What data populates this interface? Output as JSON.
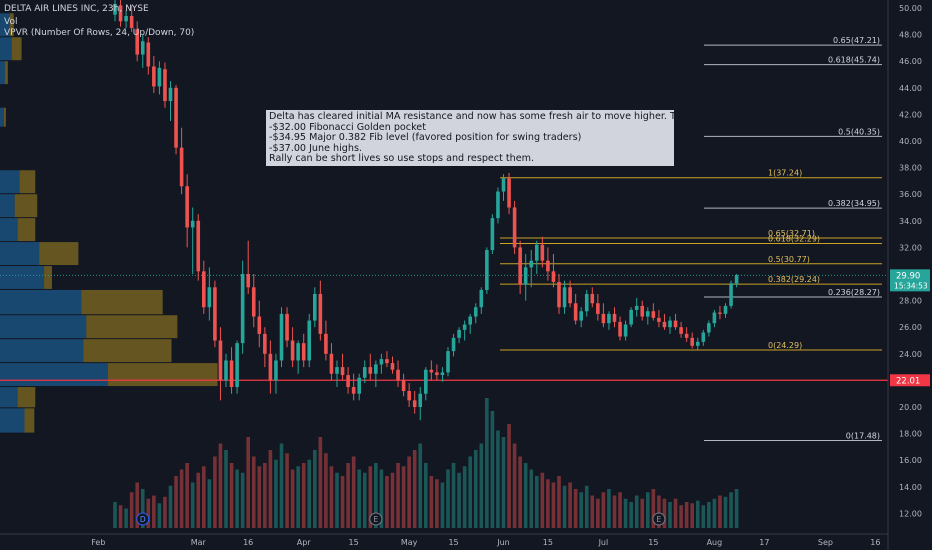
{
  "header": {
    "title": "DELTA AIR LINES INC, 23h, NYSE",
    "vol_label": "Vol",
    "vpvr_label": "VPVR (Number Of Rows, 24, Up/Down, 70)"
  },
  "note": {
    "lines": [
      "Delta has cleared initial MA resistance and now has some fresh air to move higher. Targets",
      "-$32.00 Fibonacci Golden pocket",
      "-$34.95 Major 0.382 Fib level (favored position for swing traders)",
      "-$37.00  June highs.",
      "Rally can be short lives so use stops and respect them."
    ]
  },
  "colors": {
    "background": "#131722",
    "up": "#26a69a",
    "down": "#ef5350",
    "fib": "#c9a227",
    "fib_upper": "#b2b5be",
    "support": "#f23645",
    "vpvr_up": "#1e6fb0",
    "vpvr_down": "#b8951f",
    "last_price": "#26a69a"
  },
  "chart_data": {
    "type": "candlestick",
    "symbol": "DELTA AIR LINES INC",
    "interval": "23h",
    "exchange": "NYSE",
    "y_axis": {
      "ylim": [
        10.5,
        51.0
      ],
      "ticks": [
        "12.00",
        "14.00",
        "16.00",
        "18.00",
        "20.00",
        "22.00",
        "24.00",
        "26.00",
        "28.00",
        "30.00",
        "32.00",
        "34.00",
        "36.00",
        "38.00",
        "40.00",
        "42.00",
        "44.00",
        "46.00",
        "48.00",
        "50.00"
      ]
    },
    "x_axis": {
      "labels": [
        {
          "label": "Feb",
          "i": -3
        },
        {
          "label": "Mar",
          "i": 15
        },
        {
          "label": "16",
          "i": 24
        },
        {
          "label": "Apr",
          "i": 34
        },
        {
          "label": "15",
          "i": 43
        },
        {
          "label": "May",
          "i": 53
        },
        {
          "label": "15",
          "i": 61
        },
        {
          "label": "Jun",
          "i": 70
        },
        {
          "label": "15",
          "i": 78
        },
        {
          "label": "Jul",
          "i": 88
        },
        {
          "label": "15",
          "i": 97
        },
        {
          "label": "Aug",
          "i": 108
        },
        {
          "label": "17",
          "i": 117
        },
        {
          "label": "Sep",
          "i": 128
        },
        {
          "label": "16",
          "i": 137
        }
      ]
    },
    "ohlc": [
      [
        49.5,
        50.8,
        49.0,
        50.3
      ],
      [
        50.2,
        50.6,
        48.6,
        49.0
      ],
      [
        49.0,
        49.8,
        48.5,
        49.4
      ],
      [
        49.4,
        50.2,
        48.2,
        48.5
      ],
      [
        48.4,
        49.0,
        46.0,
        46.5
      ],
      [
        46.5,
        48.0,
        45.5,
        47.5
      ],
      [
        47.4,
        47.8,
        45.0,
        45.6
      ],
      [
        45.6,
        46.4,
        43.6,
        44.1
      ],
      [
        44.1,
        46.0,
        43.5,
        45.5
      ],
      [
        45.4,
        45.9,
        42.5,
        43.0
      ],
      [
        43.0,
        44.5,
        41.5,
        44.0
      ],
      [
        44.0,
        44.2,
        39.0,
        39.5
      ],
      [
        39.5,
        41.0,
        36.0,
        36.6
      ],
      [
        36.6,
        37.5,
        32.0,
        33.5
      ],
      [
        33.5,
        35.0,
        30.0,
        34.0
      ],
      [
        34.0,
        34.5,
        29.5,
        30.2
      ],
      [
        30.2,
        31.0,
        27.0,
        27.5
      ],
      [
        27.5,
        30.5,
        26.5,
        29.0
      ],
      [
        29.0,
        29.5,
        24.5,
        25.0
      ],
      [
        25.0,
        26.0,
        20.5,
        22.0
      ],
      [
        22.0,
        24.0,
        21.5,
        23.5
      ],
      [
        23.5,
        24.5,
        21.0,
        21.5
      ],
      [
        21.5,
        25.0,
        21.0,
        24.8
      ],
      [
        24.8,
        31.0,
        24.0,
        30.0
      ],
      [
        30.0,
        32.5,
        28.5,
        29.0
      ],
      [
        29.0,
        30.0,
        26.0,
        26.8
      ],
      [
        26.8,
        28.0,
        24.5,
        25.5
      ],
      [
        25.5,
        26.0,
        23.0,
        24.0
      ],
      [
        24.0,
        25.0,
        21.0,
        22.0
      ],
      [
        22.0,
        24.0,
        21.0,
        23.5
      ],
      [
        23.5,
        27.5,
        23.0,
        27.0
      ],
      [
        27.0,
        27.5,
        24.5,
        25.0
      ],
      [
        25.0,
        26.0,
        23.0,
        23.5
      ],
      [
        23.5,
        25.0,
        22.5,
        24.8
      ],
      [
        24.8,
        25.5,
        23.0,
        23.5
      ],
      [
        23.5,
        27.0,
        23.0,
        26.5
      ],
      [
        26.5,
        29.0,
        26.0,
        28.5
      ],
      [
        28.5,
        29.5,
        25.0,
        25.5
      ],
      [
        25.5,
        26.5,
        23.5,
        24.0
      ],
      [
        24.0,
        24.8,
        22.0,
        22.5
      ],
      [
        22.5,
        23.5,
        21.5,
        23.0
      ],
      [
        23.0,
        24.0,
        22.0,
        22.4
      ],
      [
        22.4,
        23.0,
        21.0,
        21.5
      ],
      [
        21.5,
        22.5,
        20.5,
        21.0
      ],
      [
        21.0,
        22.5,
        20.5,
        22.2
      ],
      [
        22.2,
        23.5,
        21.8,
        23.0
      ],
      [
        23.0,
        24.0,
        22.0,
        22.5
      ],
      [
        22.5,
        23.5,
        21.5,
        23.2
      ],
      [
        23.2,
        24.0,
        22.5,
        23.6
      ],
      [
        23.6,
        24.2,
        23.0,
        23.3
      ],
      [
        23.3,
        23.8,
        22.5,
        22.8
      ],
      [
        22.8,
        23.5,
        21.5,
        22.0
      ],
      [
        22.0,
        22.5,
        20.8,
        21.2
      ],
      [
        21.2,
        21.8,
        20.0,
        20.5
      ],
      [
        20.5,
        21.2,
        19.5,
        20.0
      ],
      [
        20.0,
        21.5,
        19.0,
        21.0
      ],
      [
        21.0,
        23.0,
        20.5,
        22.8
      ],
      [
        22.8,
        23.5,
        22.0,
        22.6
      ],
      [
        22.6,
        23.2,
        22.0,
        22.4
      ],
      [
        22.4,
        23.0,
        21.9,
        22.6
      ],
      [
        22.6,
        24.5,
        22.3,
        24.2
      ],
      [
        24.2,
        25.5,
        23.8,
        25.2
      ],
      [
        25.2,
        26.0,
        24.8,
        25.8
      ],
      [
        25.8,
        26.5,
        25.0,
        26.2
      ],
      [
        26.2,
        27.0,
        25.5,
        26.8
      ],
      [
        26.8,
        27.8,
        26.3,
        27.5
      ],
      [
        27.5,
        29.0,
        27.0,
        28.8
      ],
      [
        28.8,
        32.0,
        28.5,
        31.8
      ],
      [
        31.8,
        34.5,
        31.5,
        34.2
      ],
      [
        34.2,
        36.5,
        33.8,
        36.2
      ],
      [
        36.2,
        37.5,
        35.5,
        37.2
      ],
      [
        37.2,
        37.6,
        34.5,
        35.0
      ],
      [
        35.0,
        35.5,
        31.5,
        32.0
      ],
      [
        32.0,
        32.5,
        28.5,
        29.2
      ],
      [
        29.2,
        31.5,
        28.0,
        30.5
      ],
      [
        30.5,
        31.8,
        29.0,
        31.0
      ],
      [
        31.0,
        32.5,
        30.0,
        32.2
      ],
      [
        32.2,
        32.8,
        30.5,
        31.0
      ],
      [
        31.0,
        32.0,
        29.5,
        30.2
      ],
      [
        30.2,
        31.5,
        29.0,
        29.4
      ],
      [
        29.4,
        30.0,
        27.0,
        27.5
      ],
      [
        27.5,
        29.5,
        27.0,
        29.0
      ],
      [
        29.0,
        29.5,
        27.5,
        27.8
      ],
      [
        27.8,
        28.5,
        26.2,
        26.5
      ],
      [
        26.5,
        27.5,
        26.0,
        27.2
      ],
      [
        27.2,
        28.8,
        26.8,
        28.5
      ],
      [
        28.5,
        29.0,
        27.5,
        27.8
      ],
      [
        27.8,
        28.5,
        26.5,
        27.0
      ],
      [
        27.0,
        27.8,
        26.0,
        26.3
      ],
      [
        26.3,
        27.2,
        25.8,
        27.0
      ],
      [
        27.0,
        27.5,
        26.0,
        26.4
      ],
      [
        26.4,
        26.8,
        25.0,
        25.3
      ],
      [
        25.3,
        26.5,
        25.0,
        26.2
      ],
      [
        26.2,
        27.5,
        26.0,
        27.3
      ],
      [
        27.3,
        28.2,
        26.8,
        27.6
      ],
      [
        27.6,
        28.0,
        26.5,
        26.8
      ],
      [
        26.8,
        27.5,
        26.2,
        27.2
      ],
      [
        27.2,
        27.8,
        26.5,
        26.7
      ],
      [
        26.7,
        27.3,
        26.0,
        26.4
      ],
      [
        26.4,
        27.0,
        25.8,
        26.0
      ],
      [
        26.0,
        26.8,
        25.5,
        26.5
      ],
      [
        26.5,
        27.0,
        25.8,
        26.0
      ],
      [
        26.0,
        26.4,
        25.2,
        25.5
      ],
      [
        25.5,
        26.0,
        24.9,
        25.2
      ],
      [
        25.2,
        25.6,
        24.4,
        24.6
      ],
      [
        24.6,
        25.2,
        24.3,
        24.9
      ],
      [
        24.9,
        25.8,
        24.6,
        25.6
      ],
      [
        25.6,
        26.5,
        25.3,
        26.3
      ],
      [
        26.3,
        27.3,
        26.0,
        27.1
      ],
      [
        27.1,
        27.6,
        26.6,
        27.0
      ],
      [
        27.0,
        27.8,
        26.7,
        27.6
      ],
      [
        27.6,
        29.5,
        27.4,
        29.3
      ],
      [
        29.3,
        30.0,
        29.0,
        29.9
      ]
    ],
    "volume": [
      40,
      35,
      30,
      55,
      70,
      60,
      45,
      50,
      38,
      48,
      65,
      80,
      90,
      100,
      70,
      85,
      95,
      75,
      110,
      130,
      120,
      100,
      90,
      85,
      140,
      110,
      95,
      100,
      120,
      105,
      130,
      115,
      90,
      95,
      100,
      105,
      120,
      140,
      115,
      95,
      85,
      80,
      100,
      110,
      90,
      85,
      95,
      100,
      90,
      80,
      85,
      100,
      95,
      110,
      120,
      130,
      100,
      80,
      75,
      70,
      90,
      100,
      85,
      95,
      110,
      120,
      130,
      200,
      180,
      150,
      140,
      160,
      130,
      110,
      100,
      90,
      80,
      85,
      75,
      70,
      80,
      65,
      70,
      60,
      55,
      65,
      50,
      45,
      55,
      60,
      50,
      55,
      45,
      40,
      50,
      45,
      55,
      60,
      50,
      45,
      40,
      45,
      35,
      40,
      38,
      42,
      35,
      40,
      45,
      50,
      48,
      55,
      60
    ],
    "vol_max": 200,
    "vpvr": {
      "rows": [
        {
          "low": 18.0,
          "high": 19.9,
          "up": 25,
          "down": 10
        },
        {
          "low": 19.9,
          "high": 21.5,
          "up": 18,
          "down": 18
        },
        {
          "low": 21.5,
          "high": 23.3,
          "up": 110,
          "down": 112
        },
        {
          "low": 23.3,
          "high": 25.1,
          "up": 85,
          "down": 90
        },
        {
          "low": 25.1,
          "high": 26.9,
          "up": 88,
          "down": 93
        },
        {
          "low": 26.9,
          "high": 28.8,
          "up": 83,
          "down": 83
        },
        {
          "low": 28.8,
          "high": 30.6,
          "up": 45,
          "down": 8
        },
        {
          "low": 30.6,
          "high": 32.4,
          "up": 40,
          "down": 40
        },
        {
          "low": 32.4,
          "high": 34.2,
          "up": 18,
          "down": 18
        },
        {
          "low": 34.2,
          "high": 36.0,
          "up": 15,
          "down": 23
        },
        {
          "low": 36.0,
          "high": 37.8,
          "up": 20,
          "down": 16
        },
        {
          "low": 41.0,
          "high": 42.5,
          "up": 4,
          "down": 2
        },
        {
          "low": 44.2,
          "high": 46.0,
          "up": 5,
          "down": 3
        },
        {
          "low": 46.0,
          "high": 47.8,
          "up": 12,
          "down": 10
        },
        {
          "low": 47.8,
          "high": 49.6,
          "up": 10,
          "down": 4
        }
      ]
    },
    "fib_levels": [
      {
        "label": "0.65(47.21)",
        "price": 47.21,
        "group": "upper"
      },
      {
        "label": "0.618(45.74)",
        "price": 45.74,
        "group": "upper"
      },
      {
        "label": "0.5(40.35)",
        "price": 40.35,
        "group": "upper"
      },
      {
        "label": "0.382(34.95)",
        "price": 34.95,
        "group": "upper"
      },
      {
        "label": "0.236(28.27)",
        "price": 28.27,
        "group": "upper"
      },
      {
        "label": "0(17.48)",
        "price": 17.48,
        "group": "upper"
      },
      {
        "label": "1(37.24)",
        "price": 37.24,
        "group": "lower"
      },
      {
        "label": "0.65(32.71)",
        "price": 32.71,
        "group": "lower"
      },
      {
        "label": "0.618(32.29)",
        "price": 32.29,
        "group": "lower"
      },
      {
        "label": "0.5(30.77)",
        "price": 30.77,
        "group": "lower"
      },
      {
        "label": "0.382(29.24)",
        "price": 29.24,
        "group": "lower"
      },
      {
        "label": "0(24.29)",
        "price": 24.29,
        "group": "lower"
      }
    ],
    "support_line": {
      "price": 22.01,
      "label": "22.01"
    },
    "last_price": {
      "price": 29.9,
      "label": "29.90",
      "countdown": "15:34:53"
    },
    "event_markers": [
      {
        "label": "D",
        "i": 5
      },
      {
        "label": "E",
        "i": 47
      },
      {
        "label": "E",
        "i": 98
      }
    ]
  }
}
